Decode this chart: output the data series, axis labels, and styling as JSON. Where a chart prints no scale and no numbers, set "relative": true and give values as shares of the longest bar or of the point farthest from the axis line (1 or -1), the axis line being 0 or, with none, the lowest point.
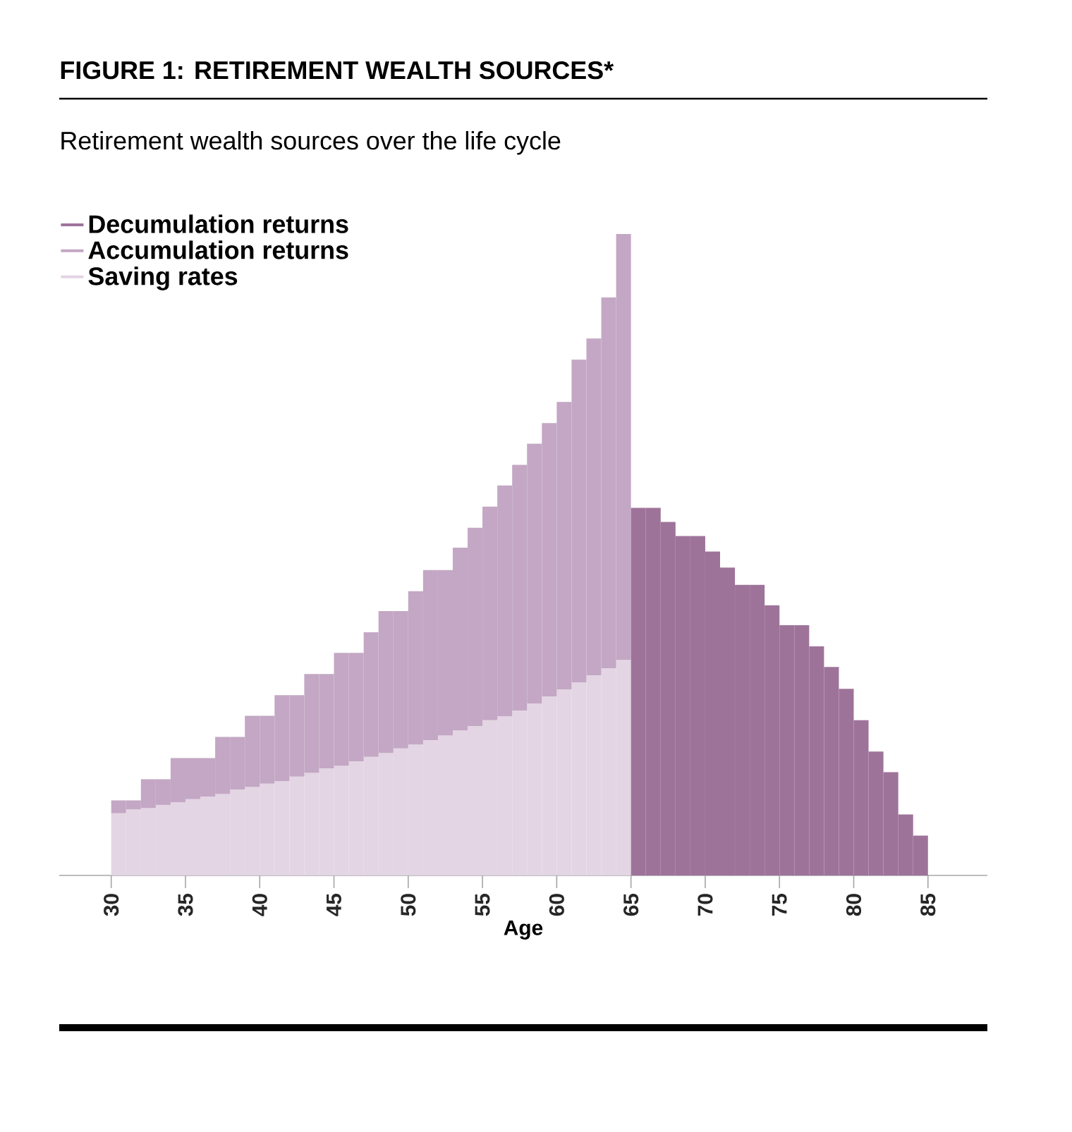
{
  "chart_data": {
    "type": "bar",
    "stacked": true,
    "relative": true,
    "title": "FIGURE 1: RETIREMENT WEALTH SOURCES*",
    "subtitle": "Retirement wealth sources over the life cycle",
    "xlabel": "Age",
    "legend": "top left",
    "xlim": [
      26.5,
      89
    ],
    "xticks": [
      30,
      35,
      40,
      45,
      50,
      55,
      60,
      65,
      70,
      75,
      80,
      85
    ],
    "x": [
      30.5,
      31.5,
      32.5,
      33.5,
      34.5,
      35.5,
      36.5,
      37.5,
      38.5,
      39.5,
      40.5,
      41.5,
      42.5,
      43.5,
      44.5,
      45.5,
      46.5,
      47.5,
      48.5,
      49.5,
      50.5,
      51.5,
      52.5,
      53.5,
      54.5,
      55.5,
      56.5,
      57.5,
      58.5,
      59.5,
      60.5,
      61.5,
      62.5,
      63.5,
      64.5,
      65.5,
      66.5,
      67.5,
      68.5,
      69.5,
      70.5,
      71.5,
      72.5,
      73.5,
      74.5,
      75.5,
      76.5,
      77.5,
      78.5,
      79.5,
      80.5,
      81.5,
      82.5,
      83.5,
      84.5
    ],
    "series": [
      {
        "name": "Saving rates",
        "color": "#e3d5e3",
        "values": [
          0.097,
          0.103,
          0.105,
          0.11,
          0.114,
          0.119,
          0.123,
          0.127,
          0.134,
          0.138,
          0.143,
          0.147,
          0.154,
          0.16,
          0.167,
          0.171,
          0.178,
          0.185,
          0.191,
          0.198,
          0.204,
          0.211,
          0.218,
          0.226,
          0.233,
          0.242,
          0.248,
          0.257,
          0.268,
          0.279,
          0.29,
          0.301,
          0.312,
          0.323,
          0.336,
          null,
          null,
          null,
          null,
          null,
          null,
          null,
          null,
          null,
          null,
          null,
          null,
          null,
          null,
          null,
          null,
          null,
          null,
          null,
          null
        ]
      },
      {
        "name": "Accumulation returns",
        "color": "#c3a7c4",
        "values": [
          0.02,
          0.014,
          0.045,
          0.04,
          0.069,
          0.064,
          0.06,
          0.089,
          0.082,
          0.111,
          0.106,
          0.134,
          0.127,
          0.154,
          0.147,
          0.176,
          0.169,
          0.194,
          0.221,
          0.214,
          0.239,
          0.265,
          0.258,
          0.285,
          0.309,
          0.333,
          0.36,
          0.383,
          0.405,
          0.426,
          0.448,
          0.503,
          0.525,
          0.578,
          0.664,
          null,
          null,
          null,
          null,
          null,
          null,
          null,
          null,
          null,
          null,
          null,
          null,
          null,
          null,
          null,
          null,
          null,
          null,
          null,
          null
        ]
      },
      {
        "name": "Decumulation returns",
        "color": "#9e7399",
        "values": [
          null,
          null,
          null,
          null,
          null,
          null,
          null,
          null,
          null,
          null,
          null,
          null,
          null,
          null,
          null,
          null,
          null,
          null,
          null,
          null,
          null,
          null,
          null,
          null,
          null,
          null,
          null,
          null,
          null,
          null,
          null,
          null,
          null,
          null,
          null,
          0.573,
          0.573,
          0.551,
          0.529,
          0.529,
          0.505,
          0.48,
          0.453,
          0.453,
          0.421,
          0.39,
          0.39,
          0.357,
          0.325,
          0.291,
          0.242,
          0.193,
          0.161,
          0.095,
          0.062
        ]
      }
    ]
  }
}
